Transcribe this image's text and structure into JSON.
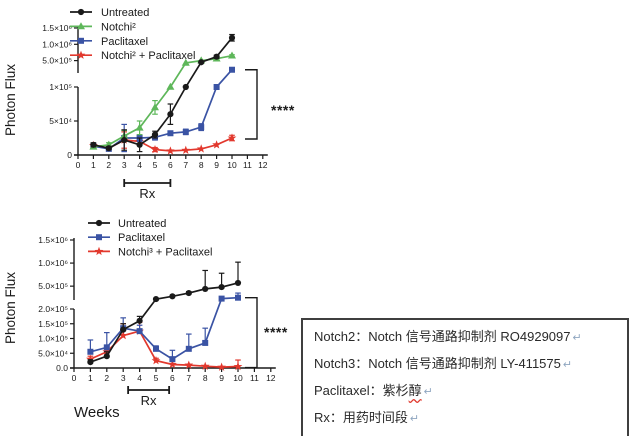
{
  "colors": {
    "black": "#1a1a1a",
    "green": "#5eb75a",
    "blue": "#3a53a4",
    "red": "#e2382d"
  },
  "chart_data": [
    {
      "id": "top",
      "type": "line",
      "title": "",
      "ylabel": "Photon Flux",
      "xlabel": "",
      "x_ticks": [
        "0",
        "1",
        "2",
        "3",
        "4",
        "5",
        "6",
        "7",
        "8",
        "9",
        "10",
        "11",
        "12"
      ],
      "weeks": [
        1,
        2,
        3,
        4,
        5,
        6,
        7,
        8,
        9,
        10
      ],
      "axis_break": true,
      "y_lower": {
        "min": 0,
        "max": 100000,
        "ticks": [
          {
            "v": 0,
            "label": "0"
          },
          {
            "v": 50000,
            "label": "5×10⁴"
          },
          {
            "v": 100000,
            "label": "1×10⁵"
          }
        ]
      },
      "y_upper": {
        "min": 120000,
        "max": 1500000,
        "ticks": [
          {
            "v": 500000,
            "label": "5.0×10⁵"
          },
          {
            "v": 1000000,
            "label": "1.0×10⁶"
          },
          {
            "v": 1500000,
            "label": "1.5×10⁶"
          }
        ]
      },
      "rx": {
        "label": "Rx",
        "from_week": 3,
        "to_week": 6
      },
      "significance": "****",
      "legend_position": "top-left-inside",
      "series": [
        {
          "name": "Untreated",
          "color": "black",
          "marker": "circle",
          "values": [
            15000,
            10000,
            22000,
            15000,
            30000,
            60000,
            100000,
            450000,
            620000,
            1200000
          ],
          "err": [
            3000,
            2000,
            15000,
            10000,
            5000,
            15000,
            0,
            0,
            50000,
            100000
          ]
        },
        {
          "name": "Notchi²",
          "color": "green",
          "marker": "triangle",
          "values": [
            12000,
            15000,
            28000,
            40000,
            70000,
            100000,
            430000,
            500000,
            560000,
            650000
          ],
          "err": [
            2000,
            3000,
            8000,
            10000,
            10000,
            0,
            0,
            0,
            0,
            30000
          ]
        },
        {
          "name": "Paclitaxel",
          "color": "blue",
          "marker": "square",
          "values": [
            13000,
            9000,
            25000,
            25000,
            26000,
            32000,
            34000,
            41000,
            100000,
            220000
          ],
          "err": [
            3000,
            2000,
            20000,
            5000,
            4000,
            3000,
            4000,
            5000,
            0,
            0
          ]
        },
        {
          "name": "Notchi² + Paclitaxel",
          "color": "red",
          "marker": "star",
          "values": [
            14000,
            10000,
            22000,
            20000,
            8000,
            6000,
            7000,
            9000,
            15000,
            25000
          ],
          "err": [
            3000,
            2000,
            12000,
            5000,
            3000,
            0,
            0,
            0,
            0,
            4000
          ]
        }
      ]
    },
    {
      "id": "bottom",
      "type": "line",
      "title": "",
      "ylabel": "Photon Flux",
      "xlabel": "Weeks",
      "x_ticks": [
        "0",
        "1",
        "2",
        "3",
        "4",
        "5",
        "6",
        "7",
        "8",
        "9",
        "10",
        "11",
        "12"
      ],
      "weeks": [
        1,
        2,
        3,
        4,
        5,
        6,
        7,
        8,
        9,
        10
      ],
      "axis_break": true,
      "y_lower": {
        "min": 0,
        "max": 200000,
        "ticks": [
          {
            "v": 0,
            "label": "0.0"
          },
          {
            "v": 50000,
            "label": "5.0×10⁴"
          },
          {
            "v": 100000,
            "label": "1.0×10⁵"
          },
          {
            "v": 150000,
            "label": "1.5×10⁵"
          },
          {
            "v": 200000,
            "label": "2.0×10⁵"
          }
        ]
      },
      "y_upper": {
        "min": 200000,
        "max": 1500000,
        "ticks": [
          {
            "v": 500000,
            "label": "5.0×10⁵"
          },
          {
            "v": 1000000,
            "label": "1.0×10⁶"
          },
          {
            "v": 1500000,
            "label": "1.5×10⁶"
          }
        ]
      },
      "rx": {
        "label": "Rx",
        "from_week": 3.3,
        "to_week": 5.8
      },
      "significance": "****",
      "legend_position": "top-left-inside",
      "series": [
        {
          "name": "Untreated",
          "color": "black",
          "marker": "circle",
          "values": [
            20000,
            40000,
            130000,
            160000,
            220000,
            280000,
            350000,
            440000,
            480000,
            570000
          ],
          "err": [
            8000,
            15000,
            20000,
            15000,
            0,
            0,
            30000,
            400000,
            300000,
            450000
          ]
        },
        {
          "name": "Paclitaxel",
          "color": "blue",
          "marker": "square",
          "values": [
            55000,
            70000,
            135000,
            125000,
            65000,
            30000,
            65000,
            85000,
            230000,
            250000
          ],
          "err": [
            40000,
            50000,
            35000,
            20000,
            10000,
            30000,
            50000,
            50000,
            0,
            100000
          ]
        },
        {
          "name": "Notchi³ + Paclitaxel",
          "color": "red",
          "marker": "star",
          "values": [
            30000,
            55000,
            110000,
            125000,
            25000,
            12000,
            10000,
            6000,
            3000,
            5000
          ],
          "err": [
            10000,
            15000,
            40000,
            30000,
            8000,
            0,
            0,
            0,
            0,
            22000
          ]
        }
      ]
    }
  ],
  "note_box": {
    "lines": [
      {
        "parts": [
          {
            "t": "Notch2：Notch 信号通路抑制剂 RO4929097"
          }
        ],
        "mark": "↵"
      },
      {
        "parts": [
          {
            "t": "Notch3：Notch 信号通路抑制剂 LY-411575"
          }
        ],
        "mark": "↵"
      },
      {
        "parts": [
          {
            "t": "Paclitaxel：紫杉"
          },
          {
            "t": "醇",
            "wavy": true
          }
        ],
        "mark": "↵"
      },
      {
        "parts": [
          {
            "t": "Rx：用药时间段"
          }
        ],
        "mark": "↵"
      }
    ]
  }
}
